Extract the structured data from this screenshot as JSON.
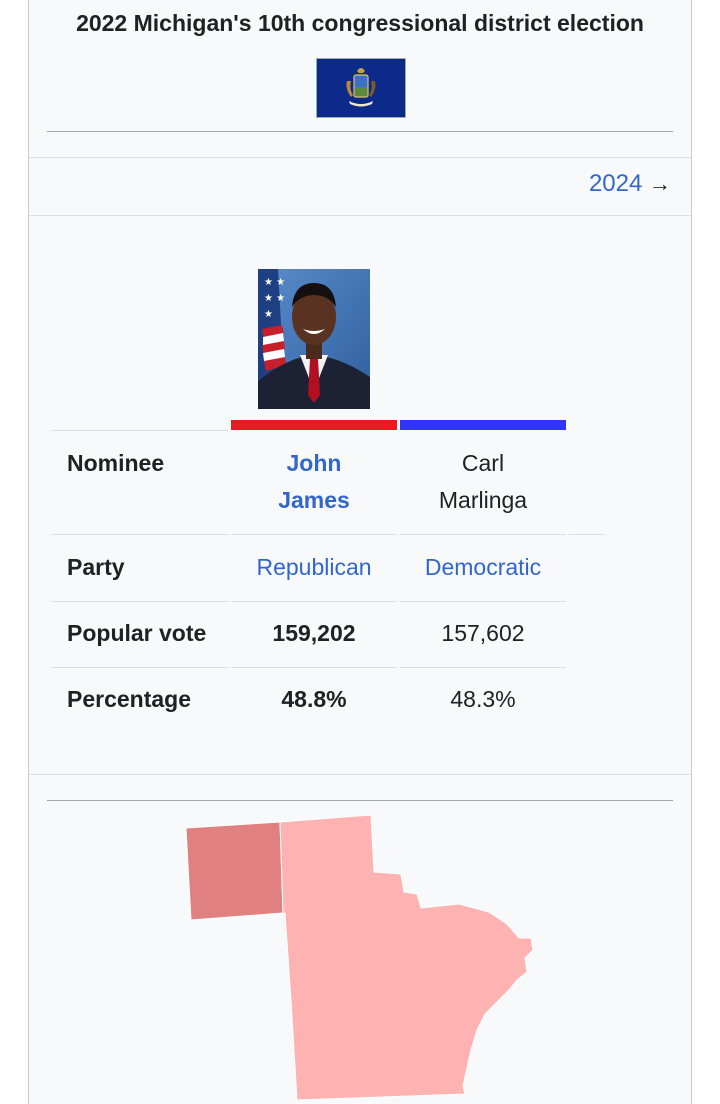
{
  "infobox": {
    "title": "2022 Michigan's 10th congressional district election",
    "flag_icon": "michigan-flag-icon",
    "next_election_label": "2024",
    "next_arrow": "→"
  },
  "candidates": {
    "row_labels": {
      "nominee": "Nominee",
      "party": "Party",
      "popular_vote": "Popular vote",
      "percentage": "Percentage"
    },
    "rep": {
      "color": "#e81b23",
      "name_line1": "John",
      "name_line2": "James",
      "party": "Republican",
      "popular_vote": "159,202",
      "percentage": "48.8%"
    },
    "dem": {
      "color": "#3333ff",
      "name_line1": "Carl",
      "name_line2": "Marlinga",
      "party": "Democratic",
      "popular_vote": "157,602",
      "percentage": "48.3%"
    }
  },
  "map": {
    "colors": {
      "rep_strong": "#e08080",
      "rep_lean": "#ffb2b2"
    }
  }
}
